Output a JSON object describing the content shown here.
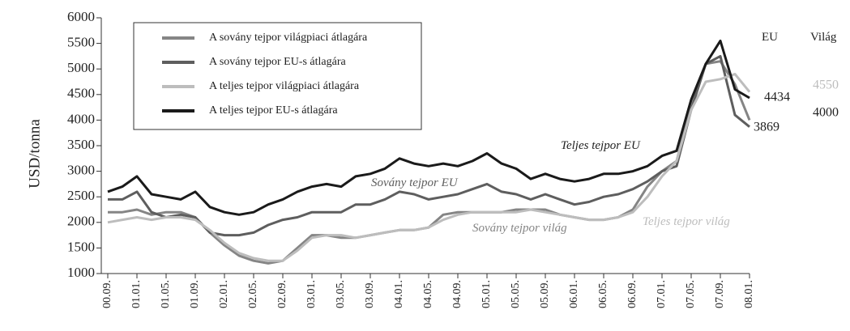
{
  "chart_data": {
    "type": "line",
    "y_label": "USD/tonna",
    "categories": [
      "00.09.",
      null,
      "01.01.",
      null,
      "01.05.",
      null,
      "01.09.",
      null,
      "02.01.",
      null,
      "02.05.",
      null,
      "02.09.",
      null,
      "03.01.",
      null,
      "03.05.",
      null,
      "03.09.",
      null,
      "04.01.",
      null,
      "04.05.",
      null,
      "04.09.",
      null,
      "05.01.",
      null,
      "05.05.",
      null,
      "05.09.",
      null,
      "06.01.",
      null,
      "06.05.",
      null,
      "06.09.",
      null,
      "07.01.",
      null,
      "07.05.",
      null,
      "07.09.",
      null,
      "08.01."
    ],
    "series": [
      {
        "name": "A sovány tejpor világpiaci átlagára",
        "color": "#858585",
        "values": [
          2200,
          2200,
          2250,
          2150,
          2200,
          2200,
          2100,
          1800,
          1550,
          1350,
          1250,
          1200,
          1250,
          1500,
          1750,
          1750,
          1700,
          1700,
          1750,
          1800,
          1850,
          1850,
          1900,
          2150,
          2200,
          2200,
          2200,
          2200,
          2250,
          2250,
          2250,
          2150,
          2100,
          2050,
          2050,
          2100,
          2250,
          2700,
          3000,
          3200,
          4300,
          5100,
          5150,
          4700,
          4000
        ]
      },
      {
        "name": "A sovány tejpor EU-s átlagára",
        "color": "#5e5e5e",
        "values": [
          2450,
          2450,
          2600,
          2200,
          2100,
          2150,
          2100,
          1800,
          1750,
          1750,
          1800,
          1950,
          2050,
          2100,
          2200,
          2200,
          2200,
          2350,
          2350,
          2450,
          2600,
          2550,
          2450,
          2500,
          2550,
          2650,
          2750,
          2600,
          2550,
          2450,
          2550,
          2450,
          2350,
          2400,
          2500,
          2550,
          2650,
          2800,
          3000,
          3100,
          4200,
          5100,
          5250,
          4100,
          3869
        ]
      },
      {
        "name": "A teljes tejpor világpiaci átlagára",
        "color": "#bdbdbd",
        "values": [
          2000,
          2050,
          2100,
          2050,
          2100,
          2100,
          2050,
          1850,
          1600,
          1400,
          1300,
          1250,
          1250,
          1450,
          1700,
          1750,
          1750,
          1700,
          1750,
          1800,
          1850,
          1850,
          1900,
          2050,
          2150,
          2200,
          2200,
          2200,
          2200,
          2250,
          2200,
          2150,
          2100,
          2050,
          2050,
          2100,
          2200,
          2500,
          2900,
          3200,
          4200,
          4750,
          4800,
          4900,
          4550
        ]
      },
      {
        "name": "A teljes tejpor EU-s átlagára",
        "color": "#1a1a1a",
        "values": [
          2600,
          2700,
          2900,
          2550,
          2500,
          2450,
          2600,
          2300,
          2200,
          2150,
          2200,
          2350,
          2450,
          2600,
          2700,
          2750,
          2700,
          2900,
          2950,
          3050,
          3250,
          3150,
          3100,
          3150,
          3100,
          3200,
          3350,
          3150,
          3050,
          2850,
          2950,
          2850,
          2800,
          2850,
          2950,
          2950,
          3000,
          3100,
          3300,
          3400,
          4400,
          5100,
          5550,
          4600,
          4434
        ]
      }
    ],
    "annotations": [
      "Teljes tejpor EU",
      "Sovány tejpor EU",
      "Sovány tejpor világ",
      "Teljes tejpor világ"
    ],
    "end_headers": [
      "EU",
      "Világ"
    ],
    "ylim": [
      1000,
      6000
    ],
    "yticks": [
      1000,
      1500,
      2000,
      2500,
      3000,
      3500,
      4000,
      4500,
      5000,
      5500,
      6000
    ]
  }
}
